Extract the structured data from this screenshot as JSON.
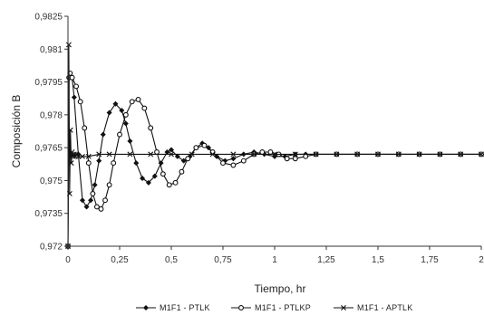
{
  "chart_data": {
    "type": "line",
    "xlabel": "Tiempo, hr",
    "ylabel": "Composición B",
    "xlim": [
      0,
      2
    ],
    "ylim": [
      0.972,
      0.9825
    ],
    "x_ticks": [
      "0",
      "0,25",
      "0,5",
      "0,75",
      "1",
      "1,25",
      "1,5",
      "1,75",
      "2"
    ],
    "y_ticks": [
      "0,9825",
      "0,981",
      "0,9795",
      "0,978",
      "0,9765",
      "0,975",
      "0,9735",
      "0,972"
    ],
    "x_tick_values": [
      0,
      0.25,
      0.5,
      0.75,
      1,
      1.25,
      1.5,
      1.75,
      2
    ],
    "y_tick_values": [
      0.9825,
      0.981,
      0.9795,
      0.978,
      0.9765,
      0.975,
      0.9735,
      0.972
    ],
    "grid": false,
    "legend_position": "bottom",
    "series": [
      {
        "name": "M1F1 - PTLK",
        "marker": "diamond",
        "color": "#111111",
        "x": [
          0,
          0.005,
          0.01,
          0.02,
          0.03,
          0.05,
          0.07,
          0.09,
          0.11,
          0.13,
          0.15,
          0.17,
          0.2,
          0.23,
          0.26,
          0.28,
          0.3,
          0.33,
          0.36,
          0.39,
          0.42,
          0.45,
          0.48,
          0.5,
          0.53,
          0.56,
          0.59,
          0.62,
          0.65,
          0.68,
          0.72,
          0.76,
          0.8,
          0.85,
          0.9,
          0.95,
          1,
          1.05,
          1.1,
          1.15,
          1.2,
          1.3,
          1.4,
          1.5,
          1.6,
          1.7,
          1.8,
          1.9,
          2
        ],
        "y": [
          0.972,
          0.9797,
          0.9799,
          0.9797,
          0.9788,
          0.9762,
          0.9741,
          0.9738,
          0.9741,
          0.9748,
          0.9759,
          0.9771,
          0.9781,
          0.9785,
          0.9782,
          0.9776,
          0.9768,
          0.9758,
          0.9751,
          0.9749,
          0.9752,
          0.9758,
          0.9763,
          0.9764,
          0.9761,
          0.9759,
          0.9761,
          0.9765,
          0.9767,
          0.9765,
          0.9761,
          0.9759,
          0.976,
          0.9762,
          0.9763,
          0.9762,
          0.9761,
          0.9761,
          0.9762,
          0.9762,
          0.9762,
          0.9762,
          0.9762,
          0.9762,
          0.9762,
          0.9762,
          0.9762,
          0.9762,
          0.9762
        ]
      },
      {
        "name": "M1F1 - PTLKP",
        "marker": "circle",
        "color": "#111111",
        "x": [
          0,
          0.005,
          0.01,
          0.02,
          0.04,
          0.06,
          0.08,
          0.1,
          0.12,
          0.14,
          0.16,
          0.18,
          0.2,
          0.22,
          0.25,
          0.28,
          0.31,
          0.34,
          0.37,
          0.4,
          0.43,
          0.46,
          0.49,
          0.52,
          0.55,
          0.58,
          0.62,
          0.66,
          0.7,
          0.75,
          0.8,
          0.85,
          0.9,
          0.94,
          0.98,
          1.02,
          1.06,
          1.1,
          1.15,
          1.2,
          1.3,
          1.4,
          1.5,
          1.6,
          1.7,
          1.8,
          1.9,
          2
        ],
        "y": [
          0.972,
          0.9797,
          0.9799,
          0.9797,
          0.9793,
          0.9786,
          0.9774,
          0.9758,
          0.9744,
          0.9738,
          0.9737,
          0.9741,
          0.9748,
          0.9758,
          0.9771,
          0.978,
          0.9786,
          0.9787,
          0.9783,
          0.9774,
          0.9763,
          0.9753,
          0.9748,
          0.9749,
          0.9754,
          0.976,
          0.9765,
          0.9766,
          0.9763,
          0.9758,
          0.9757,
          0.9759,
          0.9762,
          0.9763,
          0.9763,
          0.9762,
          0.976,
          0.976,
          0.9761,
          0.9762,
          0.9762,
          0.9762,
          0.9762,
          0.9762,
          0.9762,
          0.9762,
          0.9762,
          0.9762
        ]
      },
      {
        "name": "M1F1 - APTLK",
        "marker": "x",
        "color": "#111111",
        "x": [
          0,
          0.004,
          0.008,
          0.012,
          0.016,
          0.02,
          0.025,
          0.03,
          0.035,
          0.04,
          0.05,
          0.07,
          0.1,
          0.15,
          0.2,
          0.3,
          0.4,
          0.5,
          0.6,
          0.7,
          0.8,
          0.9,
          1,
          1.1,
          1.2,
          1.3,
          1.4,
          1.5,
          1.6,
          1.7,
          1.8,
          1.9,
          2
        ],
        "y": [
          0.972,
          0.9812,
          0.9744,
          0.9773,
          0.9758,
          0.9763,
          0.9761,
          0.9762,
          0.9761,
          0.9762,
          0.9761,
          0.9761,
          0.9761,
          0.9762,
          0.9762,
          0.9762,
          0.9762,
          0.9762,
          0.9762,
          0.9762,
          0.9762,
          0.9762,
          0.9762,
          0.9762,
          0.9762,
          0.9762,
          0.9762,
          0.9762,
          0.9762,
          0.9762,
          0.9762,
          0.9762,
          0.9762
        ]
      }
    ]
  }
}
